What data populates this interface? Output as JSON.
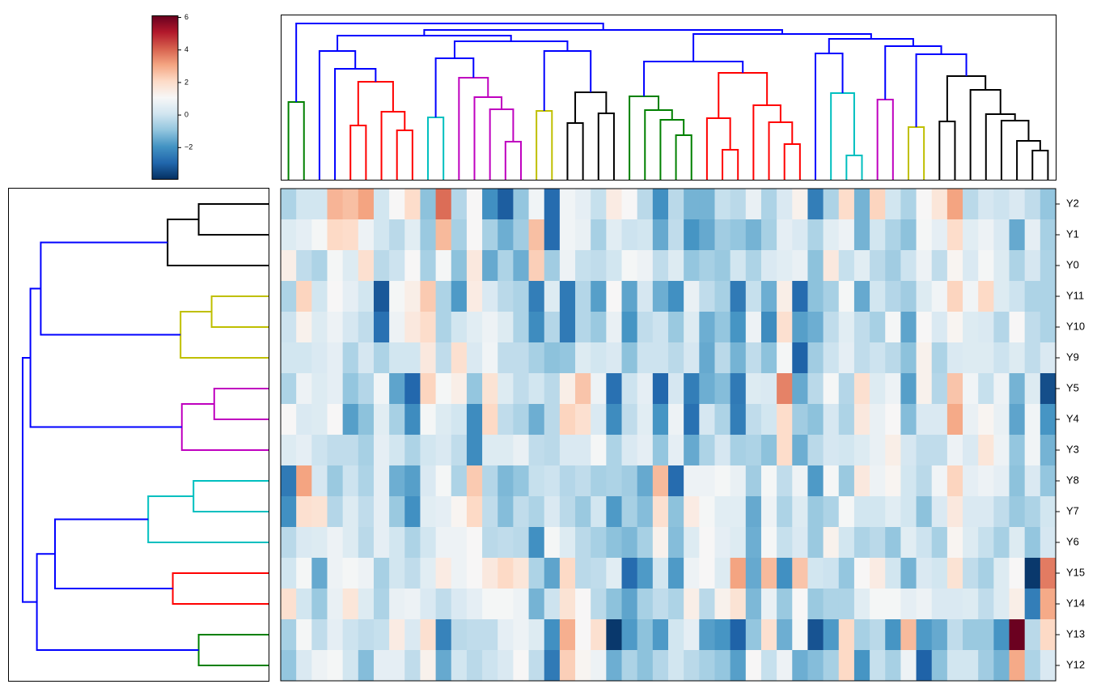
{
  "chart_data": {
    "type": "heatmap",
    "title": "",
    "colormap": "RdBu_r",
    "vmin": -3.95,
    "vmax": 6.1,
    "colorbar": {
      "ticks": [
        6,
        4,
        2,
        0,
        -2
      ],
      "tick_labels": [
        "6",
        "4",
        "2",
        "0",
        "−2"
      ],
      "placement": "top-left"
    },
    "n_columns": 50,
    "row_labels": [
      "Y2",
      "Y1",
      "Y0",
      "Y11",
      "Y10",
      "Y9",
      "Y5",
      "Y4",
      "Y3",
      "Y8",
      "Y7",
      "Y6",
      "Y15",
      "Y14",
      "Y13",
      "Y12"
    ],
    "values": [
      [
        -0.5,
        0.1,
        0.1,
        2.8,
        2.6,
        3.1,
        0.1,
        1.1,
        2.0,
        -1.0,
        3.9,
        -0.4,
        1.1,
        -2.0,
        -3.1,
        -0.9,
        0.9,
        -2.8,
        0.9,
        0.6,
        -0.1,
        1.5,
        1.1,
        -0.3,
        -2.0,
        -0.3,
        -1.3,
        -1.3,
        -0.1,
        -0.3,
        0.7,
        -0.5,
        0.3,
        1.3,
        -2.4,
        -0.5,
        2.0,
        -1.3,
        2.2,
        0.1,
        -0.5,
        1.1,
        1.7,
        3.1,
        -0.3,
        0.2,
        0.0,
        0.3,
        -0.2,
        -0.9
      ],
      [
        0.4,
        0.6,
        1.0,
        2.1,
        2.0,
        0.8,
        0.1,
        -0.3,
        0.5,
        -0.8,
        2.7,
        -0.6,
        1.1,
        -0.6,
        -1.4,
        -0.7,
        2.6,
        -2.8,
        0.9,
        0.7,
        -0.6,
        0.5,
        0.0,
        0.1,
        -1.5,
        -0.2,
        -1.9,
        -1.5,
        -0.7,
        -0.9,
        -1.3,
        -0.6,
        0.6,
        0.3,
        -0.5,
        0.5,
        0.8,
        -1.3,
        0.1,
        -0.5,
        -1.0,
        1.0,
        0.6,
        2.0,
        0.5,
        0.8,
        0.3,
        -1.5,
        0.6,
        -0.6
      ],
      [
        1.4,
        -0.2,
        -0.5,
        1.0,
        0.4,
        1.9,
        -0.3,
        0.0,
        1.1,
        -0.6,
        1.0,
        -1.0,
        1.6,
        -1.5,
        -0.5,
        -1.4,
        2.3,
        -0.7,
        0.8,
        -0.1,
        -0.2,
        0.1,
        1.0,
        0.8,
        -0.2,
        0.4,
        -0.9,
        -0.6,
        -0.8,
        0.1,
        -0.5,
        0.3,
        0.5,
        0.7,
        -1.0,
        1.6,
        -0.1,
        0.5,
        -0.3,
        -0.7,
        0.0,
        0.8,
        -0.2,
        1.2,
        0.3,
        1.0,
        0.4,
        -0.5,
        0.2,
        -0.5
      ],
      [
        -0.5,
        2.2,
        0.1,
        1.1,
        0.6,
        0.1,
        -3.2,
        1.0,
        1.4,
        2.4,
        -0.5,
        -1.8,
        1.5,
        0.3,
        -0.3,
        -0.5,
        -2.4,
        0.4,
        -2.5,
        -0.4,
        -1.7,
        1.1,
        -1.6,
        0.2,
        -1.4,
        -2.0,
        0.7,
        -0.2,
        -0.6,
        -2.5,
        -0.1,
        -1.4,
        1.4,
        -2.8,
        -1.0,
        -0.6,
        1.0,
        -1.5,
        0.1,
        -0.4,
        -0.7,
        0.4,
        0.9,
        2.2,
        0.9,
        2.1,
        0.4,
        0.0,
        -0.5,
        -0.5
      ],
      [
        0.0,
        1.3,
        0.4,
        0.8,
        0.2,
        -0.2,
        -2.7,
        0.8,
        1.6,
        2.0,
        -0.5,
        0.1,
        0.5,
        0.8,
        0.4,
        -0.5,
        -2.1,
        -0.4,
        -2.5,
        -0.4,
        -0.8,
        0.7,
        -1.9,
        -0.2,
        0.0,
        -0.8,
        0.4,
        -1.4,
        -0.9,
        -1.9,
        0.8,
        -2.1,
        1.9,
        -1.7,
        -1.4,
        -0.2,
        0.5,
        -0.2,
        -0.6,
        1.0,
        -1.6,
        1.1,
        0.3,
        1.2,
        0.4,
        0.3,
        -0.4,
        1.1,
        -0.2,
        -0.5
      ],
      [
        0.1,
        0.1,
        0.3,
        0.6,
        -0.5,
        0.2,
        -0.5,
        0.1,
        0.1,
        1.6,
        -0.2,
        1.9,
        0.3,
        0.9,
        -0.2,
        -0.2,
        -0.6,
        -1.0,
        -0.9,
        0.4,
        0.1,
        0.3,
        -1.0,
        0.0,
        0.0,
        -0.3,
        0.2,
        -1.5,
        -0.3,
        -1.3,
        -0.2,
        -1.0,
        1.0,
        -3.0,
        -0.7,
        0.0,
        0.6,
        -0.2,
        0.0,
        -0.3,
        -1.0,
        1.3,
        -0.5,
        0.3,
        0.4,
        0.4,
        0.0,
        0.4,
        -0.2,
        0.3
      ],
      [
        -0.5,
        0.8,
        0.4,
        0.6,
        -0.9,
        -0.4,
        0.9,
        -1.6,
        -2.9,
        2.2,
        1.0,
        1.4,
        -0.9,
        1.8,
        0.4,
        -0.2,
        0.1,
        -0.3,
        1.4,
        2.5,
        0.8,
        -2.7,
        0.0,
        0.6,
        -2.9,
        0.2,
        -2.4,
        -1.4,
        -1.1,
        -2.5,
        0.4,
        0.3,
        3.6,
        -1.5,
        -0.3,
        1.0,
        -0.4,
        1.9,
        0.4,
        0.8,
        -1.7,
        1.3,
        -0.4,
        2.5,
        0.9,
        -0.1,
        0.8,
        -1.3,
        0.4,
        -3.4
      ],
      [
        1.1,
        0.3,
        0.4,
        1.1,
        -1.7,
        -1.0,
        0.5,
        -0.6,
        -2.1,
        1.0,
        0.4,
        0.1,
        -2.1,
        2.1,
        -0.2,
        -0.5,
        -1.4,
        -0.3,
        2.2,
        1.9,
        0.3,
        -2.1,
        -0.2,
        0.5,
        -1.9,
        0.8,
        -2.7,
        0.2,
        -0.5,
        -2.4,
        -0.2,
        0.1,
        2.0,
        -0.7,
        -1.0,
        0.2,
        -0.5,
        1.6,
        0.7,
        1.1,
        -1.1,
        0.3,
        0.3,
        3.0,
        0.7,
        1.2,
        0.7,
        -1.6,
        0.9,
        -1.9
      ],
      [
        0.4,
        0.6,
        0.0,
        -0.2,
        -0.2,
        -0.6,
        0.6,
        0.1,
        -0.5,
        0.1,
        0.3,
        -0.2,
        -2.1,
        0.4,
        0.4,
        0.7,
        -0.2,
        -0.3,
        0.3,
        0.3,
        1.0,
        -0.5,
        0.3,
        0.6,
        -0.9,
        0.6,
        -1.5,
        -0.5,
        0.2,
        -0.6,
        -0.5,
        -1.0,
        2.0,
        -1.4,
        -0.3,
        0.2,
        0.1,
        0.4,
        0.7,
        1.4,
        0.2,
        -0.2,
        -0.2,
        0.8,
        0.3,
        1.7,
        0.8,
        -0.9,
        0.9,
        -1.3
      ],
      [
        -2.5,
        3.1,
        0.2,
        -0.8,
        0.0,
        -0.5,
        0.6,
        -1.4,
        -1.7,
        0.3,
        1.0,
        -0.5,
        2.4,
        -0.4,
        -1.2,
        -0.9,
        -0.1,
        0.0,
        -0.4,
        -0.2,
        -0.6,
        -0.5,
        -0.7,
        -1.5,
        2.7,
        -2.8,
        0.8,
        0.8,
        1.0,
        0.7,
        -0.7,
        1.0,
        -0.2,
        0.8,
        -1.8,
        1.0,
        -0.8,
        1.6,
        0.8,
        1.2,
        0.1,
        -0.3,
        0.9,
        2.2,
        0.6,
        0.8,
        0.6,
        -1.0,
        0.3,
        -0.9
      ],
      [
        -2.0,
        1.9,
        1.8,
        -0.4,
        0.4,
        -0.2,
        0.6,
        -0.8,
        -2.0,
        0.5,
        0.6,
        1.2,
        2.1,
        -0.2,
        -1.1,
        -0.2,
        -0.5,
        0.3,
        -0.3,
        -0.8,
        0.1,
        -1.8,
        -0.6,
        -1.1,
        1.9,
        -1.0,
        1.5,
        1.0,
        0.5,
        0.5,
        -1.5,
        0.8,
        -0.5,
        0.4,
        -0.8,
        -0.5,
        1.0,
        0.1,
        0.1,
        0.5,
        0.1,
        -1.0,
        0.3,
        1.6,
        0.3,
        0.3,
        -0.2,
        -0.8,
        -0.5,
        0.1
      ],
      [
        -0.3,
        0.3,
        0.4,
        0.8,
        0.4,
        -0.3,
        0.6,
        0.1,
        -0.5,
        0.1,
        0.8,
        0.8,
        1.1,
        -0.3,
        -0.2,
        -0.3,
        -2.0,
        1.0,
        0.4,
        -0.3,
        -0.6,
        -1.0,
        -1.2,
        -0.6,
        1.3,
        -1.1,
        0.4,
        1.1,
        0.6,
        0.4,
        -1.4,
        1.0,
        -0.1,
        0.3,
        -0.8,
        1.3,
        0.1,
        -0.5,
        -0.3,
        -0.9,
        0.5,
        0.0,
        -0.6,
        1.2,
        0.4,
        -0.1,
        -0.6,
        0.4,
        -0.9,
        0.2
      ],
      [
        0.1,
        1.0,
        -1.5,
        0.8,
        1.0,
        0.8,
        -0.6,
        0.1,
        -0.2,
        0.5,
        1.5,
        0.8,
        1.1,
        1.6,
        2.1,
        1.7,
        -0.5,
        -1.6,
        2.1,
        -0.3,
        -0.2,
        0.5,
        -2.8,
        -1.8,
        0.1,
        -1.8,
        0.8,
        1.1,
        0.4,
        3.1,
        -1.5,
        2.7,
        -2.0,
        2.5,
        0.1,
        0.0,
        -0.9,
        1.1,
        1.5,
        0.1,
        -1.3,
        0.3,
        0.1,
        1.8,
        -0.2,
        -0.6,
        0.4,
        1.1,
        -3.8,
        3.7
      ],
      [
        1.9,
        0.1,
        -0.8,
        0.7,
        1.7,
        0.4,
        -0.5,
        0.7,
        0.8,
        0.3,
        -0.2,
        0.3,
        0.6,
        1.0,
        1.0,
        0.8,
        -1.3,
        0.0,
        1.8,
        1.1,
        -0.3,
        -1.0,
        -1.6,
        -0.6,
        -0.2,
        -0.5,
        1.4,
        -0.3,
        1.3,
        1.8,
        -1.2,
        0.7,
        -0.8,
        1.1,
        -0.8,
        -0.5,
        -0.5,
        0.5,
        1.0,
        1.0,
        0.6,
        0.8,
        0.3,
        0.3,
        0.4,
        -0.2,
        0.4,
        1.4,
        -2.4,
        3.0
      ],
      [
        -0.6,
        1.0,
        -0.2,
        0.6,
        0.0,
        -0.2,
        -0.1,
        1.5,
        0.3,
        1.9,
        -2.3,
        -0.3,
        -0.2,
        -0.2,
        0.6,
        0.8,
        0.4,
        -2.0,
        2.9,
        1.1,
        1.9,
        -3.8,
        -1.8,
        -1.0,
        -1.8,
        0.1,
        0.6,
        -1.7,
        -1.9,
        -3.0,
        -0.9,
        1.9,
        -1.4,
        1.0,
        -3.3,
        -1.8,
        2.1,
        -0.6,
        -0.3,
        -1.9,
        2.7,
        -1.8,
        -1.5,
        -0.2,
        -0.8,
        -0.8,
        -1.9,
        6.05,
        -0.3,
        2.1
      ],
      [
        -0.9,
        0.3,
        0.8,
        1.0,
        0.1,
        -1.1,
        0.6,
        0.6,
        -0.2,
        1.3,
        -1.5,
        0.1,
        -0.3,
        0.0,
        0.3,
        1.1,
        -0.2,
        -2.5,
        2.3,
        1.2,
        0.8,
        -1.4,
        -0.5,
        -1.0,
        -0.4,
        0.1,
        -0.3,
        -0.6,
        -0.9,
        -1.7,
        1.1,
        -0.1,
        0.8,
        -1.4,
        -1.1,
        -0.6,
        2.1,
        -1.9,
        -0.1,
        -0.6,
        0.8,
        -3.0,
        -1.0,
        0.1,
        0.1,
        -0.7,
        -1.3,
        3.0,
        -0.5,
        0.3
      ]
    ],
    "cluster_colors": {
      "green": "#008000",
      "red": "#ff0000",
      "cyan": "#00bfbf",
      "magenta": "#bf00bf",
      "yellow": "#bfbf00",
      "black": "#000000",
      "blue": "#0000ff"
    },
    "column_dendrogram": [
      {
        "l": 0,
        "r": 1,
        "h": 4.8,
        "c": "green"
      },
      {
        "l": 4,
        "r": 5,
        "h": 3.35,
        "c": "red"
      },
      {
        "l": 7,
        "r": 8,
        "h": 3.05,
        "c": "red"
      },
      {
        "l": 6,
        "r": "L2",
        "h": 4.2,
        "c": "red"
      },
      {
        "l": "L1",
        "r": "L3",
        "h": 6.05,
        "c": "red"
      },
      {
        "l": 3,
        "r": "L4",
        "h": 6.85,
        "c": "blue"
      },
      {
        "l": 2,
        "r": "L5",
        "h": 7.95,
        "c": "blue"
      },
      {
        "l": 9,
        "r": 10,
        "h": 3.85,
        "c": "cyan"
      },
      {
        "l": 14,
        "r": 15,
        "h": 2.35,
        "c": "magenta"
      },
      {
        "l": 13,
        "r": "L8",
        "h": 4.35,
        "c": "magenta"
      },
      {
        "l": 12,
        "r": "L9",
        "h": 5.1,
        "c": "magenta"
      },
      {
        "l": 11,
        "r": "L10",
        "h": 6.3,
        "c": "magenta"
      },
      {
        "l": "L7",
        "r": "L11",
        "h": 7.5,
        "c": "blue"
      },
      {
        "l": 16,
        "r": 17,
        "h": 4.25,
        "c": "yellow"
      },
      {
        "l": 18,
        "r": 19,
        "h": 3.5,
        "c": "black"
      },
      {
        "l": 20,
        "r": 21,
        "h": 4.1,
        "c": "black"
      },
      {
        "l": "L14",
        "r": "L15",
        "h": 5.4,
        "c": "black"
      },
      {
        "l": "L13",
        "r": "L16",
        "h": 7.95,
        "c": "blue"
      },
      {
        "l": "L12",
        "r": "L17",
        "h": 8.55,
        "c": "blue"
      },
      {
        "l": "L6",
        "r": "L18",
        "h": 8.9,
        "c": "blue"
      },
      {
        "l": 25,
        "r": 26,
        "h": 2.75,
        "c": "green"
      },
      {
        "l": 24,
        "r": "L20",
        "h": 3.7,
        "c": "green"
      },
      {
        "l": 23,
        "r": "L21",
        "h": 4.3,
        "c": "green"
      },
      {
        "l": 22,
        "r": "L22",
        "h": 5.15,
        "c": "green"
      },
      {
        "l": 28,
        "r": 29,
        "h": 1.85,
        "c": "red"
      },
      {
        "l": 27,
        "r": "L24",
        "h": 3.8,
        "c": "red"
      },
      {
        "l": 32,
        "r": 33,
        "h": 2.2,
        "c": "red"
      },
      {
        "l": 31,
        "r": "L26",
        "h": 3.55,
        "c": "red"
      },
      {
        "l": 30,
        "r": "L27",
        "h": 4.6,
        "c": "red"
      },
      {
        "l": "L25",
        "r": "L28",
        "h": 6.6,
        "c": "red"
      },
      {
        "l": "L23",
        "r": "L29",
        "h": 7.3,
        "c": "blue"
      },
      {
        "l": 36,
        "r": 37,
        "h": 1.5,
        "c": "cyan"
      },
      {
        "l": 35,
        "r": "L31",
        "h": 5.35,
        "c": "cyan"
      },
      {
        "l": 34,
        "r": "L32",
        "h": 7.8,
        "c": "blue"
      },
      {
        "l": 38,
        "r": 39,
        "h": 4.95,
        "c": "magenta"
      },
      {
        "l": 40,
        "r": 41,
        "h": 3.25,
        "c": "yellow"
      },
      {
        "l": 48,
        "r": 49,
        "h": 1.8,
        "c": "black"
      },
      {
        "l": 47,
        "r": "L36",
        "h": 2.4,
        "c": "black"
      },
      {
        "l": 46,
        "r": "L37",
        "h": 3.65,
        "c": "black"
      },
      {
        "l": 45,
        "r": "L38",
        "h": 4.05,
        "c": "black"
      },
      {
        "l": 44,
        "r": "L39",
        "h": 5.55,
        "c": "black"
      },
      {
        "l": 42,
        "r": 43,
        "h": 3.6,
        "c": "black"
      },
      {
        "l": "L41",
        "r": "L40",
        "h": 6.4,
        "c": "black"
      },
      {
        "l": "L35",
        "r": "L42",
        "h": 7.75,
        "c": "blue"
      },
      {
        "l": "L34",
        "r": "L43",
        "h": 8.25,
        "c": "blue"
      },
      {
        "l": "L33",
        "r": "L44",
        "h": 8.7,
        "c": "blue"
      },
      {
        "l": "L30",
        "r": "L45",
        "h": 9.0,
        "c": "blue"
      },
      {
        "l": "L19",
        "r": "L46",
        "h": 9.25,
        "c": "blue"
      },
      {
        "l": "L0",
        "r": "L47",
        "h": 9.65,
        "c": "blue"
      }
    ],
    "row_dendrogram": [
      {
        "l": 0,
        "r": 1,
        "h": 2.7,
        "c": "black"
      },
      {
        "l": "L0",
        "r": 2,
        "h": 3.9,
        "c": "black"
      },
      {
        "l": 3,
        "r": 4,
        "h": 2.2,
        "c": "yellow"
      },
      {
        "l": "L2",
        "r": 5,
        "h": 3.4,
        "c": "yellow"
      },
      {
        "l": "L1",
        "r": "L3",
        "h": 8.8,
        "c": "blue"
      },
      {
        "l": 6,
        "r": 7,
        "h": 2.1,
        "c": "magenta"
      },
      {
        "l": "L5",
        "r": 8,
        "h": 3.35,
        "c": "magenta"
      },
      {
        "l": "L4",
        "r": "L6",
        "h": 9.2,
        "c": "blue"
      },
      {
        "l": 9,
        "r": 10,
        "h": 2.9,
        "c": "cyan"
      },
      {
        "l": "L8",
        "r": 11,
        "h": 4.65,
        "c": "cyan"
      },
      {
        "l": 12,
        "r": 13,
        "h": 3.7,
        "c": "red"
      },
      {
        "l": "L9",
        "r": "L10",
        "h": 8.25,
        "c": "blue"
      },
      {
        "l": 14,
        "r": 15,
        "h": 2.7,
        "c": "green"
      },
      {
        "l": "L11",
        "r": "L12",
        "h": 8.95,
        "c": "blue"
      },
      {
        "l": "L7",
        "r": "L13",
        "h": 9.5,
        "c": "blue"
      }
    ]
  }
}
